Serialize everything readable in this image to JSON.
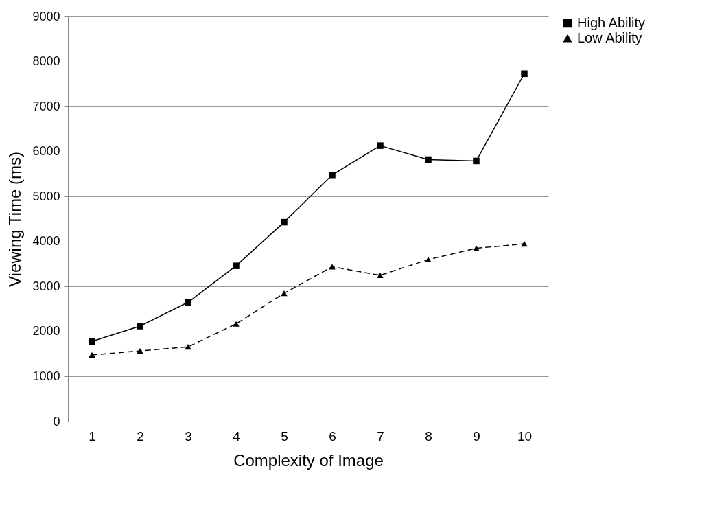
{
  "chart_data": {
    "type": "line",
    "xlabel": "Complexity of Image",
    "ylabel": "Viewing Time (ms)",
    "categories": [
      "1",
      "2",
      "3",
      "4",
      "5",
      "6",
      "7",
      "8",
      "9",
      "10"
    ],
    "series": [
      {
        "name": "High Ability",
        "color": "#000000",
        "marker": "square",
        "line_style": "solid",
        "values": [
          1780,
          2120,
          2650,
          3460,
          4430,
          5480,
          6130,
          5820,
          5790,
          7730
        ]
      },
      {
        "name": "Low Ability",
        "color": "#000000",
        "marker": "triangle",
        "line_style": "dashed",
        "values": [
          1480,
          1570,
          1660,
          2170,
          2850,
          3440,
          3250,
          3600,
          3850,
          3950
        ]
      }
    ],
    "ylim": [
      0,
      9000
    ],
    "yticks": [
      0,
      1000,
      2000,
      3000,
      4000,
      5000,
      6000,
      7000,
      8000,
      9000
    ],
    "grid": "y",
    "legend": "right"
  }
}
